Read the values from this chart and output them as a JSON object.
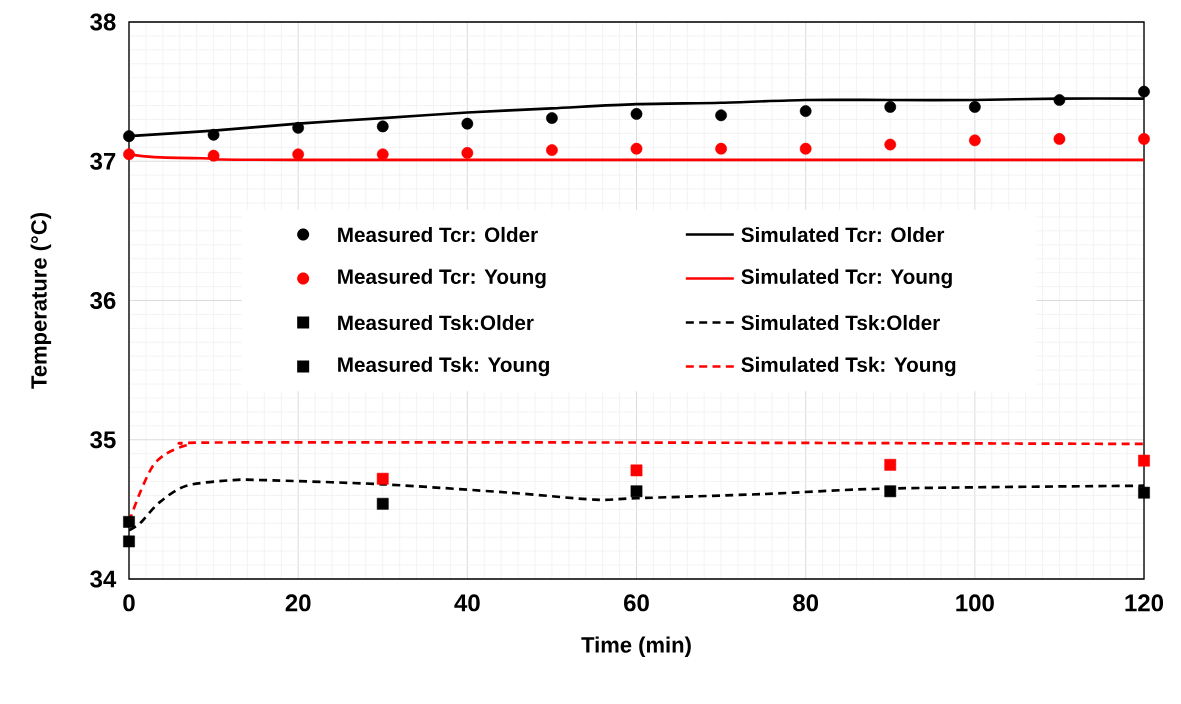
{
  "chart_data": {
    "type": "line",
    "xlabel": "Time (min)",
    "ylabel": "Temperature (°C)",
    "xlim": [
      0,
      120
    ],
    "ylim": [
      34,
      38
    ],
    "xticks": [
      0,
      20,
      40,
      60,
      80,
      100,
      120
    ],
    "yticks": [
      34,
      35,
      36,
      37,
      38
    ],
    "grid": true,
    "legend": "center",
    "series": [
      {
        "name": "Measured Tcr: Older",
        "type": "scatter",
        "color": "#000000",
        "marker": "circle",
        "x": [
          0,
          10,
          20,
          30,
          40,
          50,
          60,
          70,
          80,
          90,
          100,
          110,
          120
        ],
        "values": [
          37.18,
          37.19,
          37.24,
          37.25,
          37.27,
          37.31,
          37.34,
          37.33,
          37.36,
          37.39,
          37.39,
          37.44,
          37.5
        ]
      },
      {
        "name": "Simulated Tcr: Older",
        "color": "#000000",
        "marker": "none",
        "line_style": "solid",
        "x": [
          0,
          10,
          20,
          30,
          40,
          50,
          60,
          70,
          80,
          90,
          100,
          110,
          120
        ],
        "values": [
          37.18,
          37.22,
          37.27,
          37.31,
          37.35,
          37.38,
          37.41,
          37.42,
          37.44,
          37.44,
          37.44,
          37.45,
          37.45
        ]
      },
      {
        "name": "Measured Tcr: Young",
        "type": "scatter",
        "color": "#ff0000",
        "marker": "circle",
        "x": [
          0,
          10,
          20,
          30,
          40,
          50,
          60,
          70,
          80,
          90,
          100,
          110,
          120
        ],
        "values": [
          37.05,
          37.04,
          37.05,
          37.05,
          37.06,
          37.08,
          37.09,
          37.09,
          37.09,
          37.12,
          37.15,
          37.16,
          37.16
        ]
      },
      {
        "name": "Simulated Tcr: Young",
        "color": "#ff0000",
        "marker": "none",
        "line_style": "solid",
        "x": [
          0,
          3,
          10,
          20,
          120
        ],
        "values": [
          37.05,
          37.03,
          37.02,
          37.01,
          37.01
        ]
      },
      {
        "name": "Measured Tsk:Older",
        "type": "scatter",
        "color": "#000000",
        "marker": "square",
        "x": [
          0,
          30,
          60,
          90,
          120
        ],
        "values": [
          34.27,
          34.54,
          34.63,
          34.63,
          34.62
        ]
      },
      {
        "name": "Simulated Tsk:Older",
        "color": "#000000",
        "marker": "none",
        "line_style": "dashed",
        "x": [
          0,
          1.3,
          3.6,
          6.8,
          12.3,
          16,
          30,
          45,
          55,
          60,
          75,
          90,
          120
        ],
        "values": [
          34.35,
          34.4,
          34.55,
          34.67,
          34.71,
          34.71,
          34.68,
          34.62,
          34.57,
          34.58,
          34.61,
          34.65,
          34.67
        ]
      },
      {
        "name": "Measured Tsk: Young",
        "type": "scatter",
        "color": "#ff0000",
        "colors": [
          "#000000",
          "#ff0000",
          "#ff0000",
          "#ff0000",
          "#ff0000"
        ],
        "marker": "square",
        "x": [
          0,
          30,
          60,
          90,
          120
        ],
        "values": [
          34.41,
          34.72,
          34.78,
          34.82,
          34.85
        ]
      },
      {
        "name": "Simulated Tsk: Young",
        "color": "#ff0000",
        "marker": "none",
        "line_style": "dashed",
        "x": [
          0,
          1.3,
          2.8,
          4.4,
          6.8,
          10,
          60,
          120
        ],
        "values": [
          34.41,
          34.62,
          34.81,
          34.9,
          34.96,
          34.98,
          34.98,
          34.97
        ]
      }
    ]
  }
}
